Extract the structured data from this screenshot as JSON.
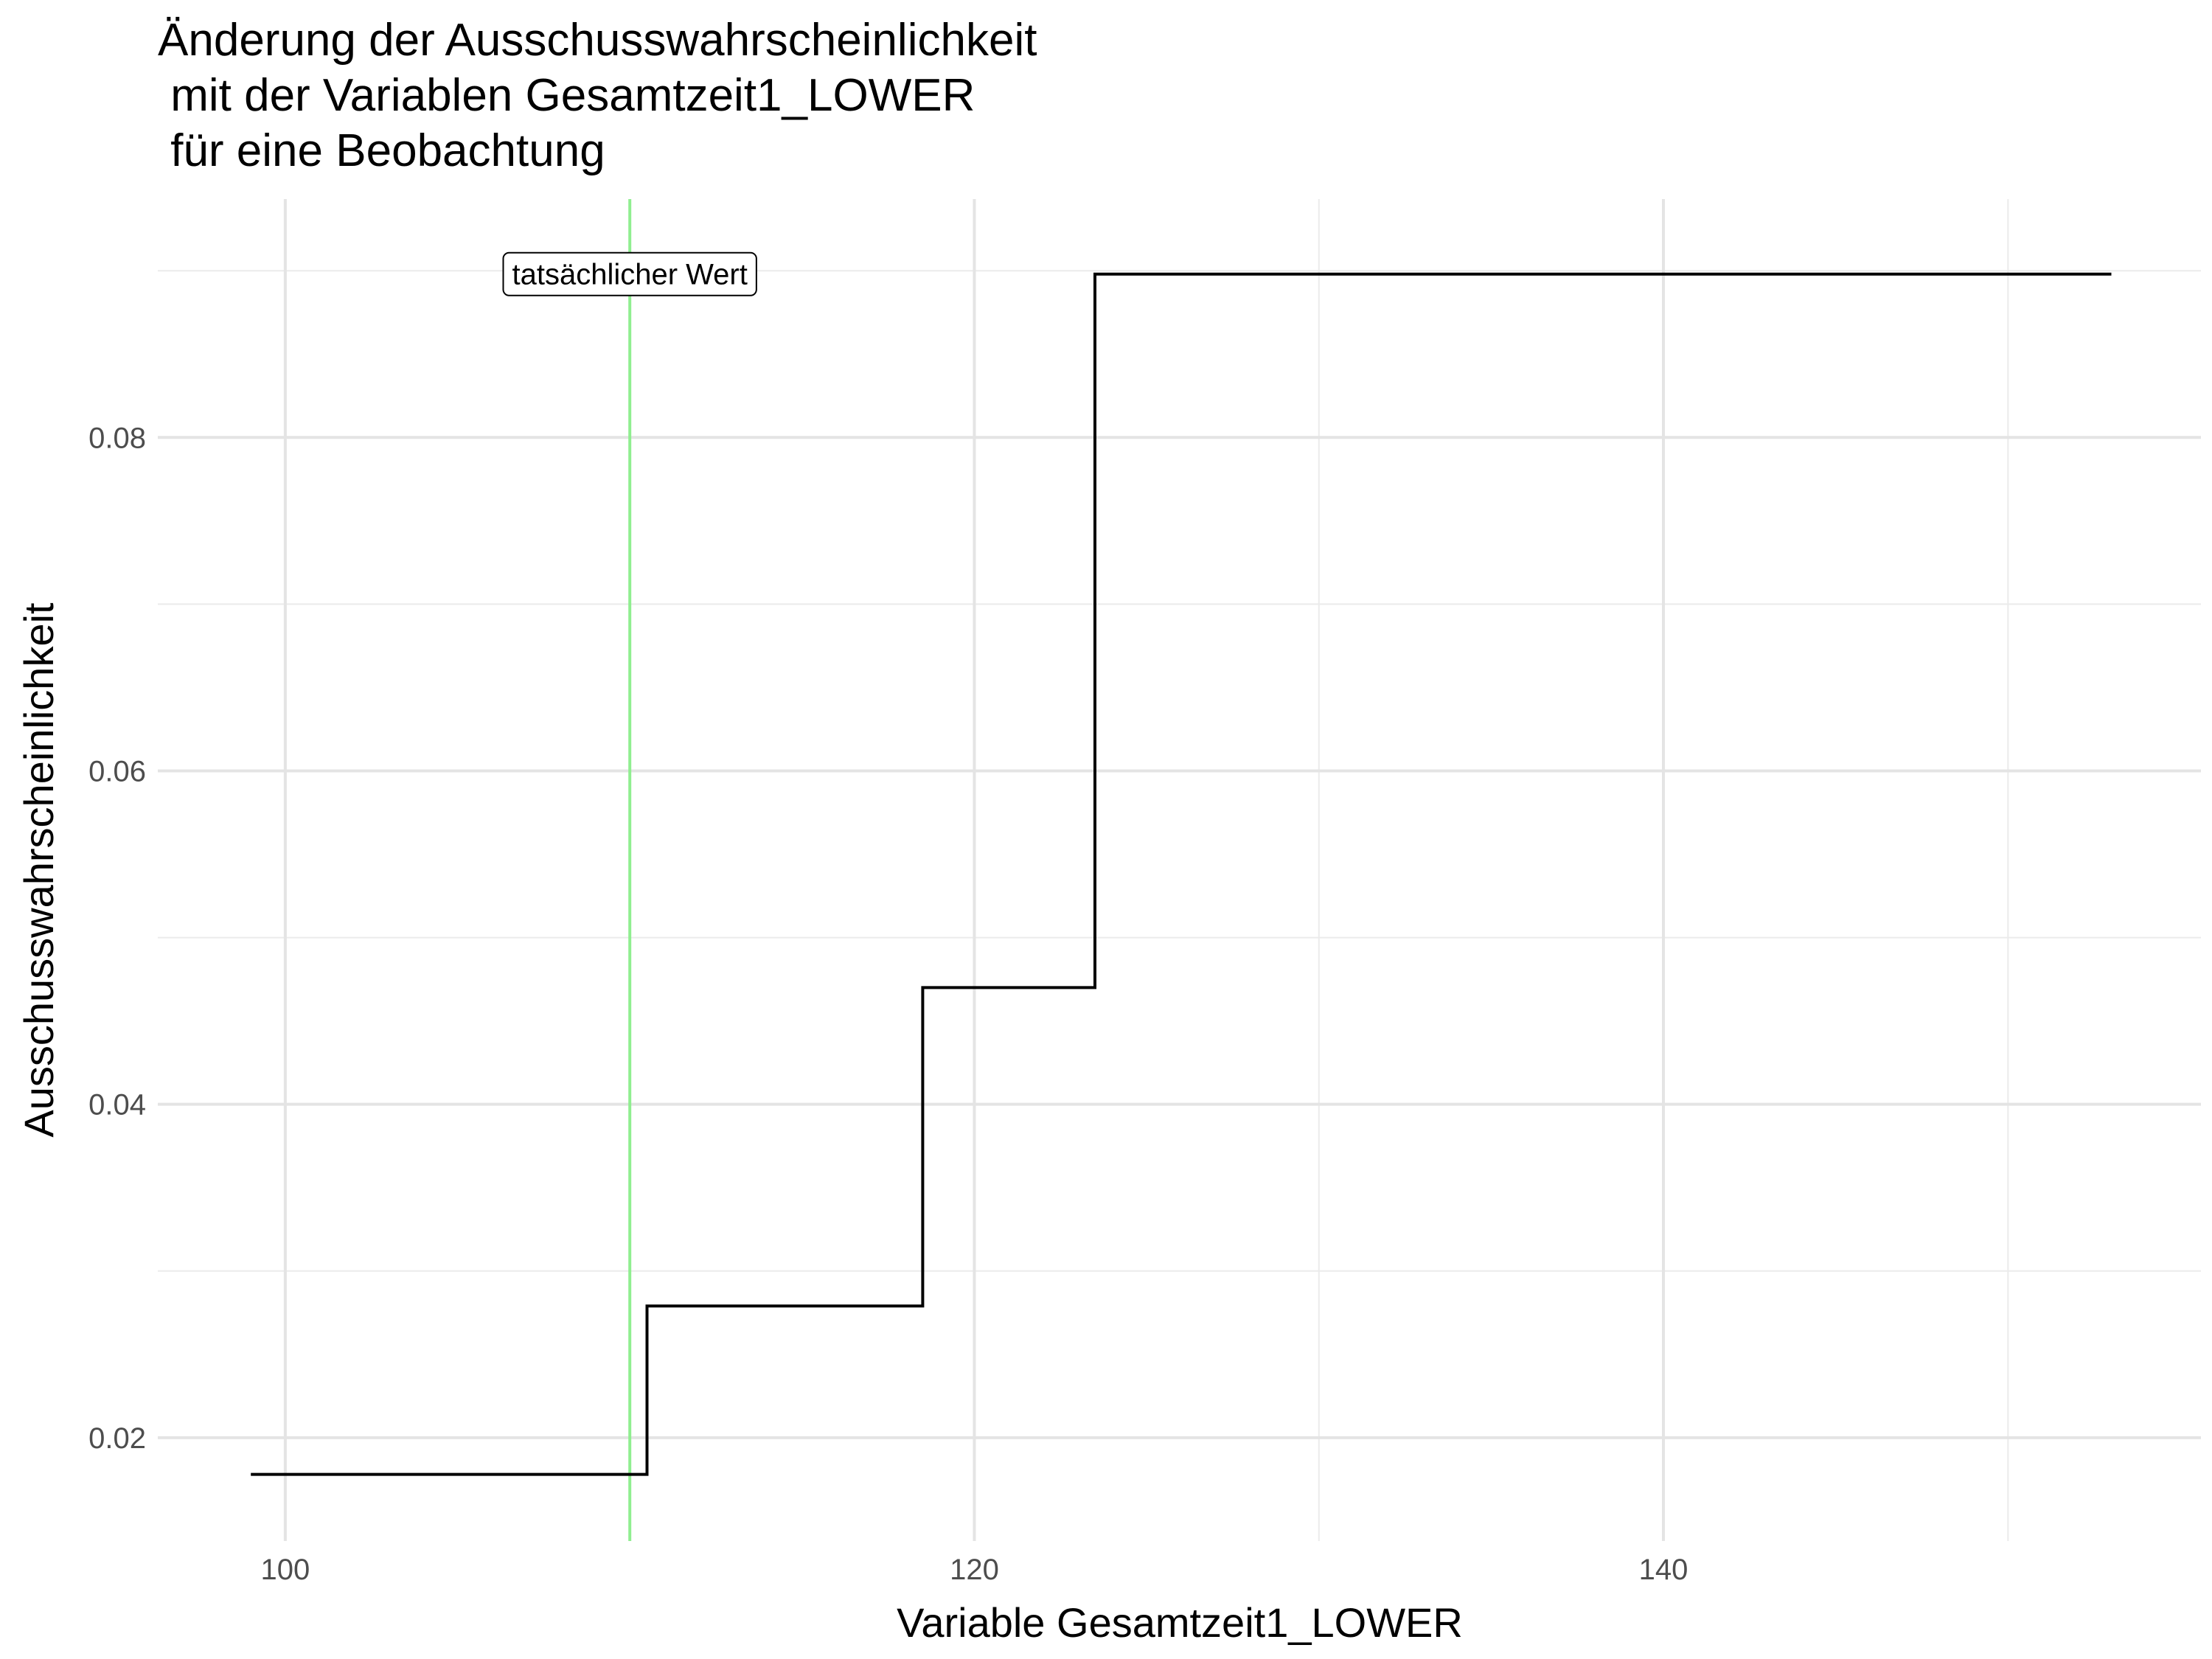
{
  "chart_data": {
    "type": "line",
    "step": true,
    "title_lines": [
      "Änderung der Ausschusswahrscheinlichkeit",
      " mit der Variablen Gesamtzeit1_LOWER",
      " für eine Beobachtung"
    ],
    "xlabel": "Variable Gesamtzeit1_LOWER",
    "ylabel": "Ausschusswahrscheinlichkeit",
    "xlim": [
      96.3,
      155.6
    ],
    "ylim": [
      0.0138,
      0.0943
    ],
    "x_ticks": [
      100,
      120,
      140
    ],
    "x_tick_labels": [
      "100",
      "120",
      "140"
    ],
    "x_minor_ticks": [
      110,
      130,
      150
    ],
    "y_ticks": [
      0.02,
      0.04,
      0.06,
      0.08
    ],
    "y_tick_labels": [
      "0.02",
      "0.04",
      "0.06",
      "0.08"
    ],
    "y_minor_ticks": [
      0.03,
      0.05,
      0.07,
      0.09
    ],
    "grid": true,
    "series": [
      {
        "color": "#000000",
        "x": [
          99.0,
          110.5,
          110.5,
          118.5,
          118.5,
          123.5,
          123.5,
          153.0
        ],
        "y": [
          0.0178,
          0.0178,
          0.0279,
          0.0279,
          0.047,
          0.047,
          0.0898,
          0.0898
        ]
      }
    ],
    "vline": {
      "x": 110.0,
      "color": "#90ee90"
    },
    "annotation": {
      "text": "tatsächlicher Wert",
      "x": 110.0,
      "y": 0.0898
    }
  }
}
